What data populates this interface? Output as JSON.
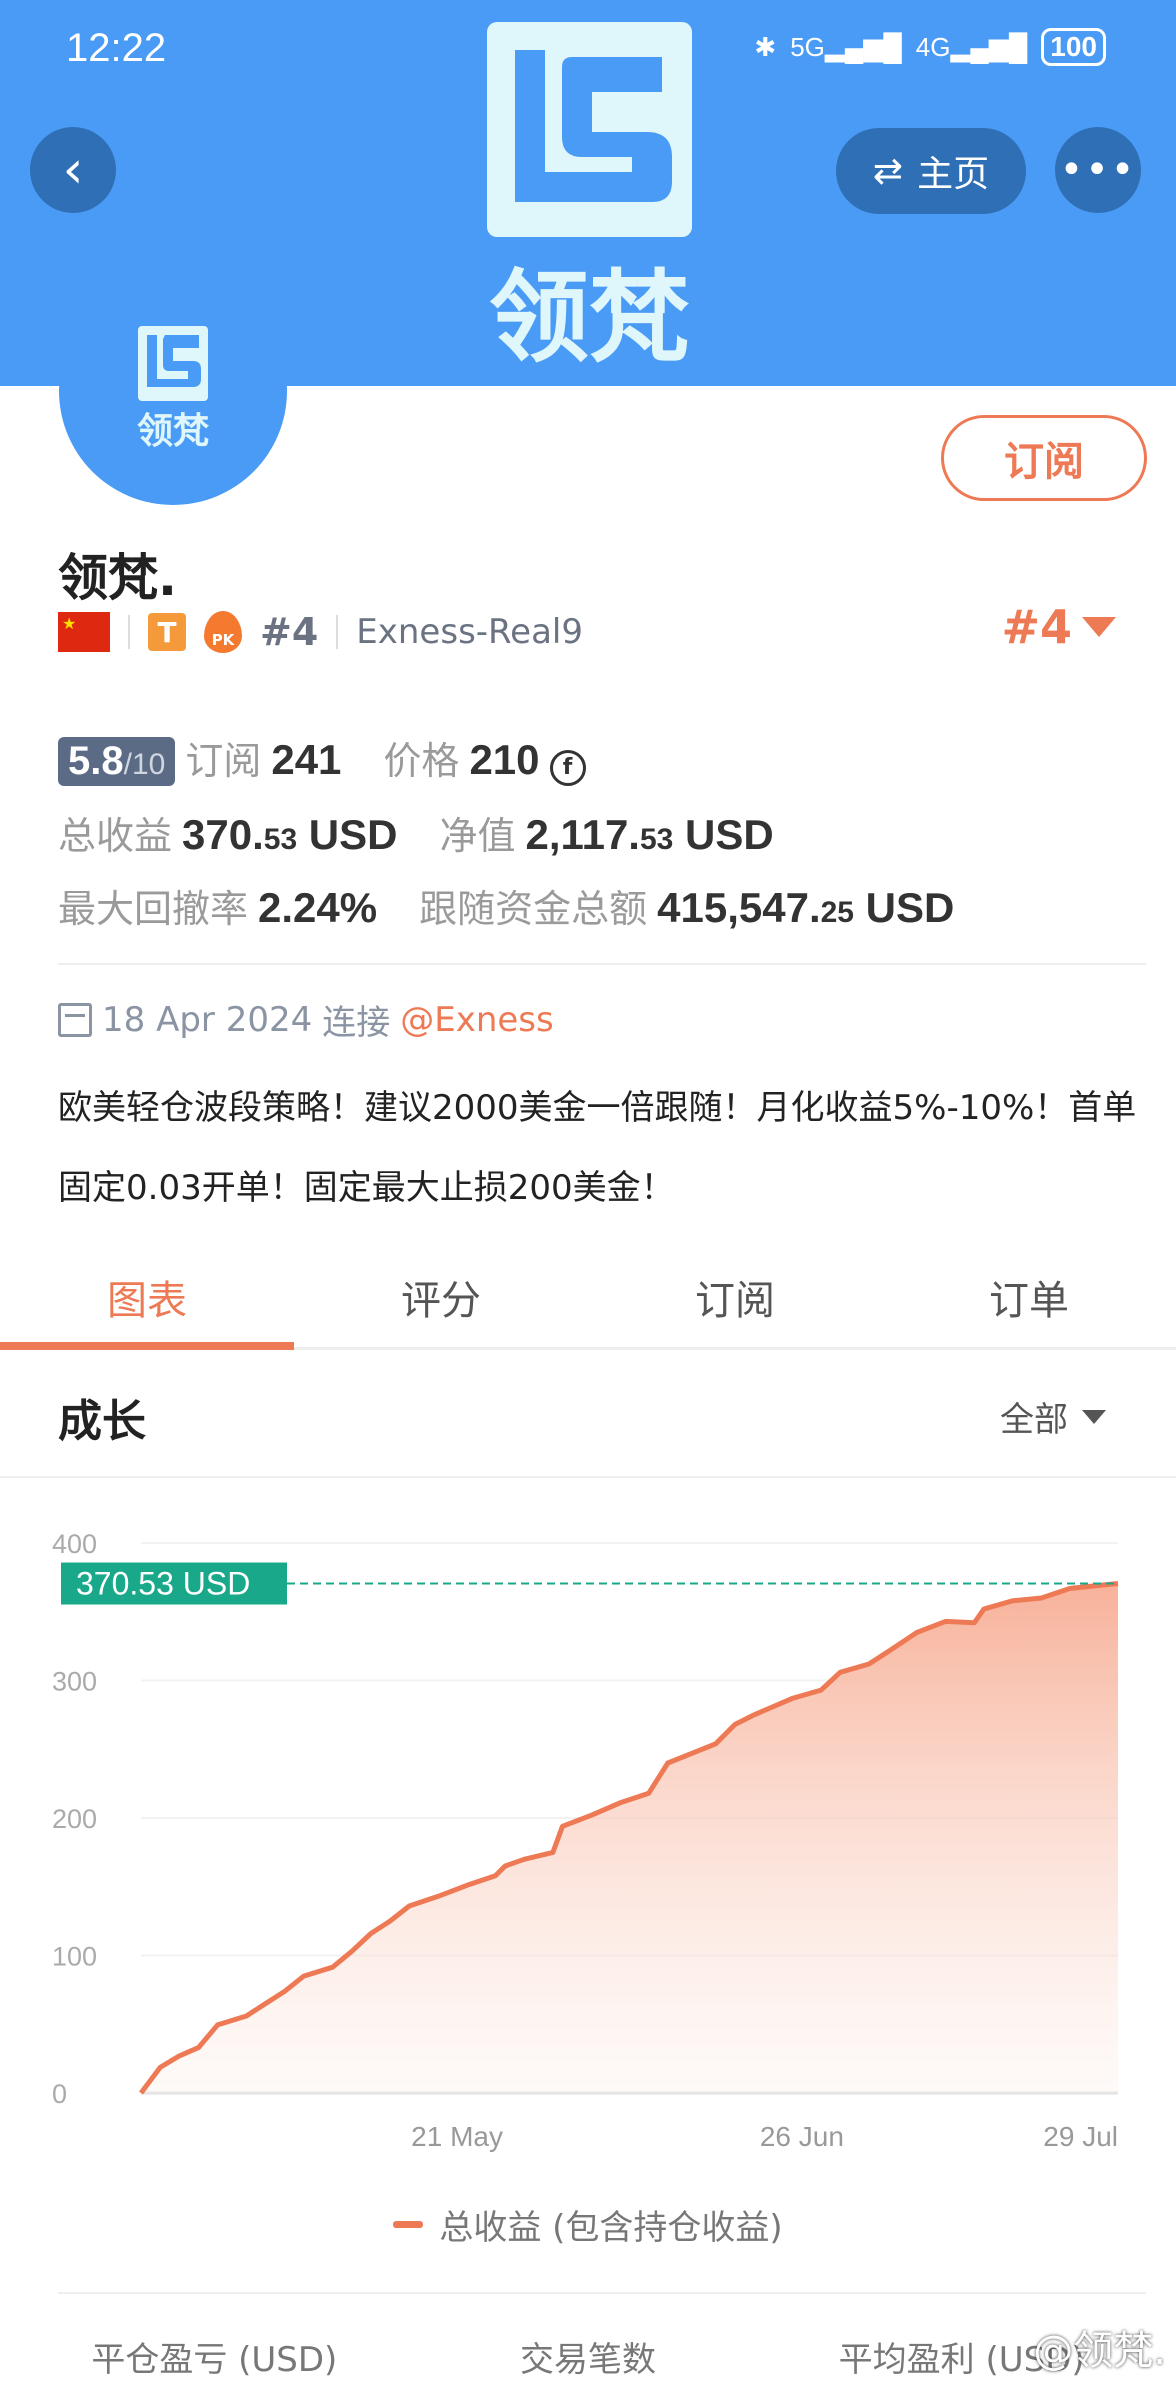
{
  "status_bar": {
    "time": "12:22",
    "signal_1": "5G",
    "signal_2": "4G",
    "battery": "100"
  },
  "header": {
    "home_label": "主页",
    "logo_text": "领梵",
    "avatar_text": "领梵"
  },
  "profile": {
    "subscribe_label": "订阅",
    "name": "领梵.",
    "badge_t": "T",
    "badge_pk": "PK",
    "rank": "#4",
    "server": "Exness-Real9",
    "rank_right": "#4"
  },
  "stats": {
    "score": "5.8",
    "score_max": "/10",
    "subscribers_label": "订阅",
    "subscribers": "241",
    "price_label": "价格",
    "price": "210",
    "price_icon": "coin-icon",
    "total_profit_label": "总收益",
    "total_profit_int": "370.",
    "total_profit_dec": "53",
    "total_profit_unit": " USD",
    "equity_label": "净值",
    "equity_int": "2,117.",
    "equity_dec": "53",
    "equity_unit": " USD",
    "max_drawdown_label": "最大回撤率",
    "max_drawdown": "2.24%",
    "follow_funds_label": "跟随资金总额",
    "follow_funds_int": "415,547.",
    "follow_funds_dec": "25",
    "follow_funds_unit": " USD"
  },
  "info": {
    "date": "18 Apr 2024",
    "connect_label": "连接",
    "broker": "@Exness",
    "description": "欧美轻仓波段策略！建议2000美金一倍跟随！月化收益5%-10%！首单固定0.03开单！固定最大止损200美金！"
  },
  "tabs": [
    {
      "label": "图表",
      "active": true
    },
    {
      "label": "评分"
    },
    {
      "label": "订阅"
    },
    {
      "label": "订单"
    }
  ],
  "growth": {
    "title": "成长",
    "range": "全部"
  },
  "chart_data": {
    "type": "area",
    "x_tick_labels": [
      "21 May",
      "26 Jun",
      "29 Jul"
    ],
    "x_ticks": [
      "2024-05-21",
      "2024-06-26",
      "2024-07-29"
    ],
    "y_tick_labels": [
      "0",
      "100",
      "200",
      "300",
      "400"
    ],
    "ylim": [
      0,
      400
    ],
    "grid": true,
    "current_label": "370.53 USD",
    "current_value": 370.53,
    "colors": {
      "line": "#ee7a55",
      "fill": "#f7b49c",
      "marker": "#1aa88a"
    },
    "legend_position": "bottom",
    "series": [
      {
        "name": "总收益 (包含持仓收益)",
        "points": [
          [
            "2024-04-18",
            0
          ],
          [
            "2024-04-20",
            18.6
          ],
          [
            "2024-04-22",
            27
          ],
          [
            "2024-04-24",
            33
          ],
          [
            "2024-04-26",
            49.5
          ],
          [
            "2024-04-29",
            56
          ],
          [
            "2024-05-01",
            65
          ],
          [
            "2024-05-03",
            74
          ],
          [
            "2024-05-05",
            85
          ],
          [
            "2024-05-08",
            91.5
          ],
          [
            "2024-05-10",
            103
          ],
          [
            "2024-05-12",
            116
          ],
          [
            "2024-05-14",
            125
          ],
          [
            "2024-05-16",
            136
          ],
          [
            "2024-05-19",
            143
          ],
          [
            "2024-05-22",
            151
          ],
          [
            "2024-05-25",
            158
          ],
          [
            "2024-05-26",
            165
          ],
          [
            "2024-05-28",
            170
          ],
          [
            "2024-05-31",
            175
          ],
          [
            "2024-06-01",
            194
          ],
          [
            "2024-06-04",
            202
          ],
          [
            "2024-06-07",
            211
          ],
          [
            "2024-06-10",
            218
          ],
          [
            "2024-06-12",
            240
          ],
          [
            "2024-06-17",
            254
          ],
          [
            "2024-06-19",
            268
          ],
          [
            "2024-06-21",
            275
          ],
          [
            "2024-06-25",
            287
          ],
          [
            "2024-06-28",
            293
          ],
          [
            "2024-06-30",
            306
          ],
          [
            "2024-07-03",
            312
          ],
          [
            "2024-07-05",
            321
          ],
          [
            "2024-07-08",
            335
          ],
          [
            "2024-07-11",
            343
          ],
          [
            "2024-07-14",
            342
          ],
          [
            "2024-07-15",
            352
          ],
          [
            "2024-07-18",
            358
          ],
          [
            "2024-07-21",
            360
          ],
          [
            "2024-07-24",
            367
          ],
          [
            "2024-07-29",
            370.53
          ]
        ]
      }
    ]
  },
  "bottom_stats": {
    "closed_pnl_label": "平仓盈亏 (USD)",
    "trades_label": "交易笔数",
    "avg_profit_label": "平均盈利 (USD)"
  },
  "watermark": "@领梵."
}
